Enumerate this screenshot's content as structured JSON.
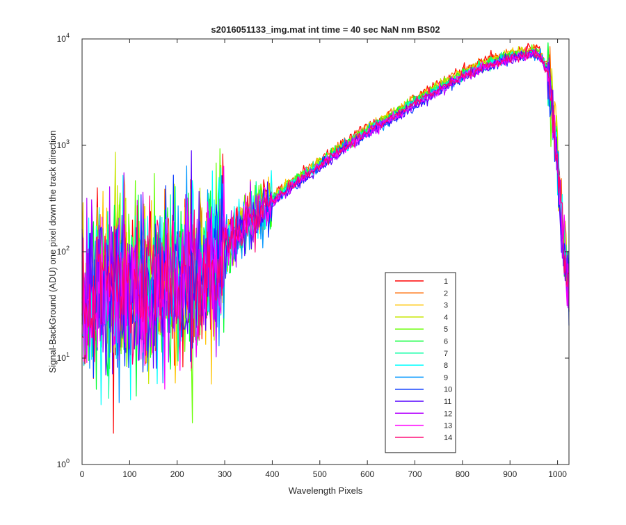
{
  "chart_data": {
    "type": "line",
    "title": "s2016051133_img.mat int time = 40 sec  NaN nm BS02",
    "xlabel": "Wavelength Pixels",
    "ylabel": "Signal-BackGround (ADU) one pixel down the track direction",
    "xlim": [
      0,
      1024
    ],
    "ylim": [
      1,
      10000
    ],
    "yscale": "log",
    "grid": false,
    "legend_position": "bottom-right inside",
    "x_ticks": [
      "0",
      "100",
      "200",
      "300",
      "400",
      "500",
      "600",
      "700",
      "800",
      "900",
      "1000"
    ],
    "x_tick_values": [
      0,
      100,
      200,
      300,
      400,
      500,
      600,
      700,
      800,
      900,
      1000
    ],
    "y_tick_values": [
      1,
      10,
      100,
      1000,
      10000
    ],
    "y_tick_bases": [
      "10",
      "10",
      "10",
      "10",
      "10"
    ],
    "y_tick_exponents": [
      "0",
      "1",
      "2",
      "3",
      "4"
    ],
    "envelope_points": {
      "x": [
        0,
        50,
        100,
        150,
        200,
        250,
        300,
        350,
        400,
        450,
        500,
        550,
        600,
        650,
        700,
        750,
        800,
        850,
        900,
        930,
        950,
        965,
        980,
        990,
        1000,
        1010,
        1020,
        1024
      ],
      "median": [
        40,
        45,
        40,
        45,
        50,
        60,
        110,
        200,
        300,
        450,
        650,
        950,
        1350,
        1800,
        2500,
        3400,
        4500,
        5600,
        6800,
        7100,
        7400,
        6800,
        4800,
        2000,
        700,
        150,
        60,
        40
      ]
    },
    "series": [
      {
        "name": "1",
        "color": "#ff0000",
        "scale": 1.12
      },
      {
        "name": "2",
        "color": "#ff6a00",
        "scale": 1.1
      },
      {
        "name": "3",
        "color": "#ffc400",
        "scale": 1.08
      },
      {
        "name": "4",
        "color": "#c8e600",
        "scale": 1.06
      },
      {
        "name": "5",
        "color": "#66ff00",
        "scale": 1.05
      },
      {
        "name": "6",
        "color": "#00ff33",
        "scale": 1.04
      },
      {
        "name": "7",
        "color": "#00ffa0",
        "scale": 1.02
      },
      {
        "name": "8",
        "color": "#00ffff",
        "scale": 1.0
      },
      {
        "name": "9",
        "color": "#0096ff",
        "scale": 0.98
      },
      {
        "name": "10",
        "color": "#0033ff",
        "scale": 0.96
      },
      {
        "name": "11",
        "color": "#5500ff",
        "scale": 0.95
      },
      {
        "name": "12",
        "color": "#b400ff",
        "scale": 0.96
      },
      {
        "name": "13",
        "color": "#ff00ff",
        "scale": 0.98
      },
      {
        "name": "14",
        "color": "#ff0070",
        "scale": 0.99
      }
    ]
  }
}
